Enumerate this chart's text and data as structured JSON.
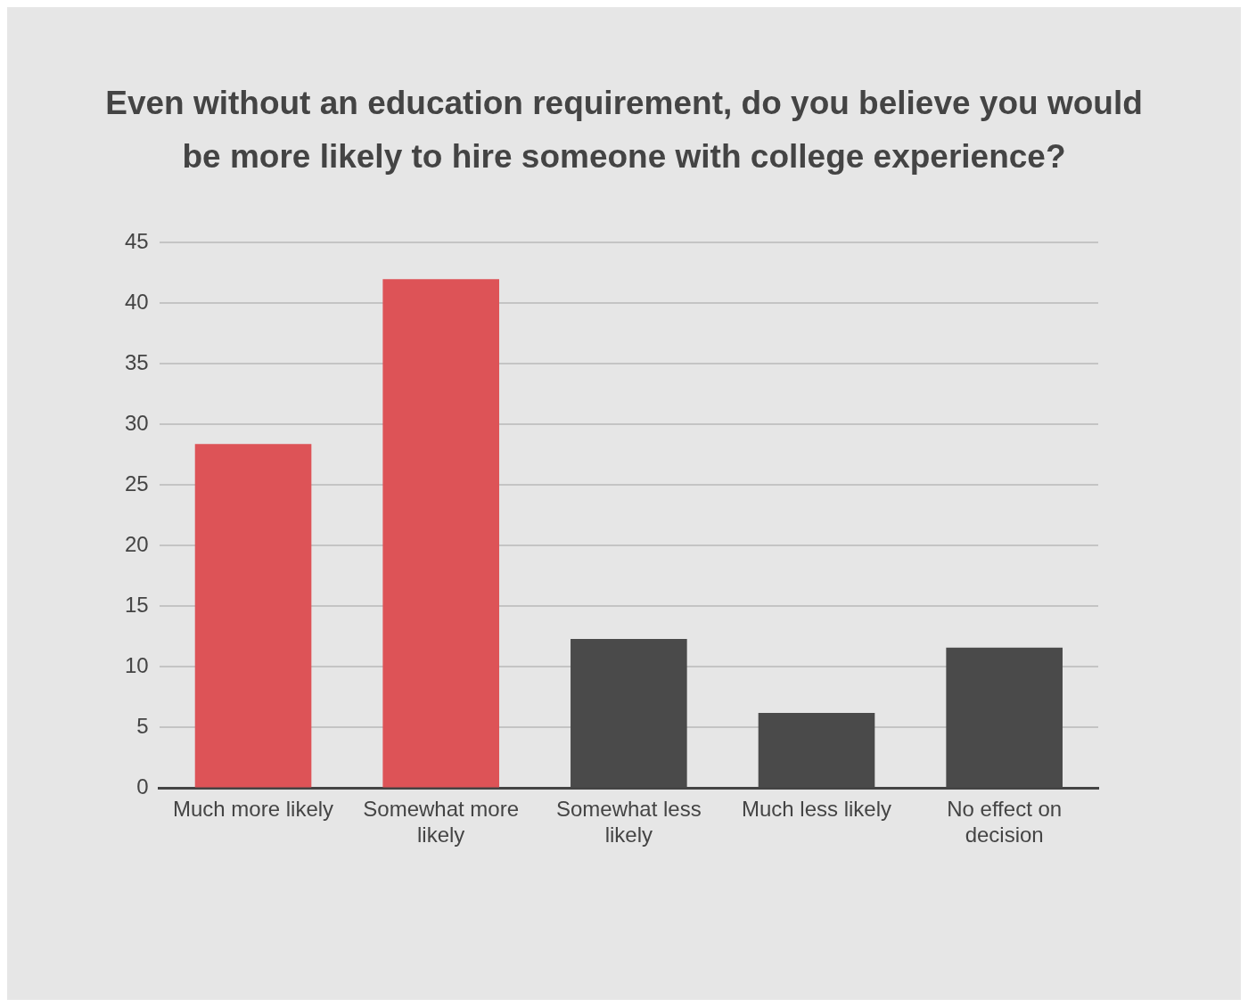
{
  "chart_data": {
    "type": "bar",
    "title": "Even without an education requirement, do you believe you would be more likely to hire someone with college experience?",
    "categories": [
      "Much more likely",
      "Somewhat more likely",
      "Somewhat less likely",
      "Much less likely",
      "No effect on decision"
    ],
    "values": [
      28.4,
      42.0,
      12.3,
      6.2,
      11.6
    ],
    "colors": [
      "#dd5357",
      "#dd5357",
      "#4a4a4a",
      "#4a4a4a",
      "#4a4a4a"
    ],
    "ylim": [
      0,
      45
    ],
    "yticks": [
      0,
      5,
      10,
      15,
      20,
      25,
      30,
      35,
      40,
      45
    ],
    "grid": "y",
    "legend": false
  }
}
